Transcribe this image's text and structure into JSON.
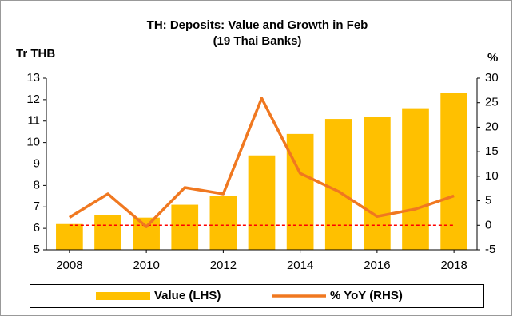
{
  "chart_data": {
    "type": "combo",
    "title": "TH: Deposits: Value and Growth in Feb",
    "subtitle": "(19 Thai Banks)",
    "y_label": "Tr THB",
    "y2_label": "%",
    "x": [
      2008,
      2009,
      2010,
      2011,
      2012,
      2013,
      2014,
      2015,
      2016,
      2017,
      2018
    ],
    "xlim": [
      2007.4,
      2018.6
    ],
    "xticks": [
      2008,
      2010,
      2012,
      2014,
      2016,
      2018
    ],
    "ylim": [
      5,
      13
    ],
    "yticks": [
      5,
      6,
      7,
      8,
      9,
      10,
      11,
      12,
      13
    ],
    "y2lim": [
      -5,
      30
    ],
    "y2ticks": [
      -5,
      0,
      5,
      10,
      15,
      20,
      25,
      30
    ],
    "y2_reference_line": 0,
    "reference_color": "#ff0000",
    "legend": "bottom",
    "series": [
      {
        "name": "Value (LHS)",
        "type": "bar",
        "color": "#ffc000",
        "values": [
          6.2,
          6.6,
          6.5,
          7.1,
          7.5,
          9.4,
          10.4,
          11.1,
          11.2,
          11.6,
          12.3
        ]
      },
      {
        "name": "% YoY (RHS)",
        "type": "line",
        "axis": "y2",
        "color": "#f07820",
        "values": [
          1.6,
          6.4,
          -0.3,
          7.7,
          6.4,
          25.9,
          10.6,
          6.9,
          1.8,
          3.3,
          6.0
        ]
      }
    ]
  }
}
